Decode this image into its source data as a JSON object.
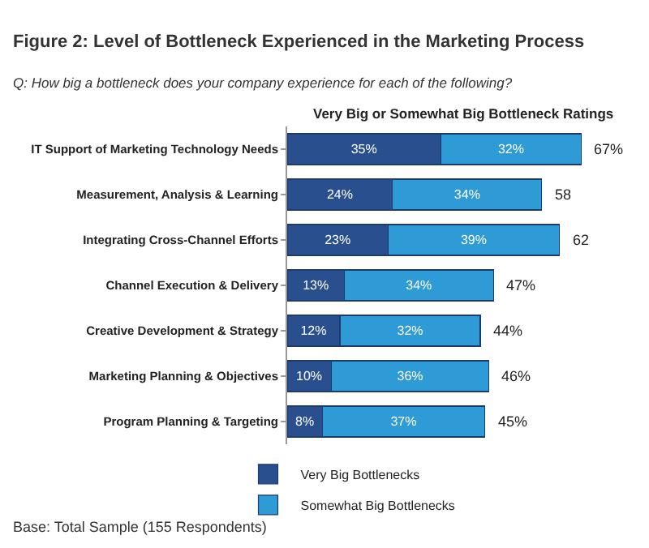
{
  "chart_data": {
    "type": "bar",
    "orientation": "horizontal",
    "stacked": true,
    "title": "Figure 2: Level of Bottleneck Experienced in the Marketing Process",
    "subtitle": "Q: How big a bottleneck does your company experience for each of the following?",
    "categories": [
      "IT Support of Marketing Technology Needs",
      "Measurement, Analysis & Learning",
      "Integrating Cross-Channel Efforts",
      "Channel Execution & Delivery",
      "Creative Development & Strategy",
      "Marketing Planning & Objectives",
      "Program Planning & Targeting"
    ],
    "series": [
      {
        "name": "Very Big Bottlenecks",
        "color": "#2a4f8f",
        "values": [
          35,
          24,
          23,
          13,
          12,
          10,
          8
        ],
        "value_labels": [
          "35%",
          "24%",
          "23%",
          "13%",
          "12%",
          "10%",
          "8%"
        ]
      },
      {
        "name": "Somewhat Big Bottlenecks",
        "color": "#2e9ad6",
        "values": [
          32,
          34,
          39,
          34,
          32,
          36,
          37
        ],
        "value_labels": [
          "32%",
          "34%",
          "39%",
          "34%",
          "32%",
          "36%",
          "37%"
        ]
      }
    ],
    "totals": [
      "67%",
      "58",
      "62",
      "47%",
      "44%",
      "46%",
      "45%"
    ],
    "annotations": [
      "Very Big or Somewhat Big Bottleneck Ratings",
      "Base: Total Sample (155 Respondents)"
    ],
    "legend": "bottom",
    "tick_labels": "y"
  }
}
